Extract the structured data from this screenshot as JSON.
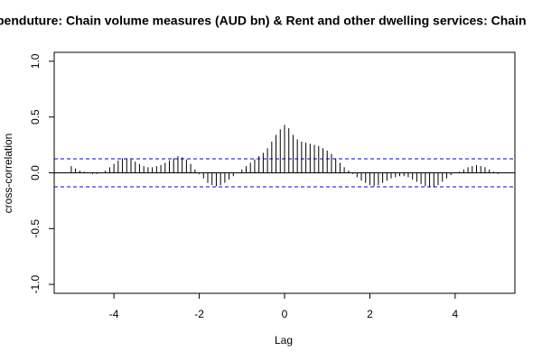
{
  "chart_data": {
    "type": "ccf",
    "title": "penduture: Chain volume measures (AUD bn) & Rent and other dwelling services: Chain",
    "x_label": "Lag",
    "y_label": "cross-correlation",
    "xlim": [
      -5.4,
      5.4
    ],
    "ylim": [
      -1.08,
      1.08
    ],
    "xticks": [
      -4,
      -2,
      0,
      2,
      4
    ],
    "yticks": [
      {
        "value": -1,
        "label": "-1.0"
      },
      {
        "value": -0.5,
        "label": "-0.5"
      },
      {
        "value": 0,
        "label": "0.0"
      },
      {
        "value": 0.5,
        "label": "0.5"
      },
      {
        "value": 1,
        "label": "1.0"
      }
    ],
    "color": "#000000",
    "confidence_bounds": [
      0.125,
      -0.125
    ],
    "confidence_color": "#0000ff",
    "x": [
      -5.0,
      -4.9,
      -4.8,
      -4.7,
      -4.6,
      -4.5,
      -4.4,
      -4.3,
      -4.2,
      -4.1,
      -4.0,
      -3.9,
      -3.8,
      -3.7,
      -3.6,
      -3.5,
      -3.4,
      -3.3,
      -3.2,
      -3.1,
      -3.0,
      -2.9,
      -2.8,
      -2.7,
      -2.6,
      -2.5,
      -2.4,
      -2.3,
      -2.2,
      -2.1,
      -2.0,
      -1.9,
      -1.8,
      -1.7,
      -1.6,
      -1.5,
      -1.4,
      -1.3,
      -1.2,
      -1.1,
      -1.0,
      -0.9,
      -0.8,
      -0.7,
      -0.6,
      -0.5,
      -0.4,
      -0.3,
      -0.2,
      -0.1,
      0.0,
      0.1,
      0.2,
      0.3,
      0.4,
      0.5,
      0.6,
      0.7,
      0.8,
      0.9,
      1.0,
      1.1,
      1.2,
      1.3,
      1.4,
      1.5,
      1.6,
      1.7,
      1.8,
      1.9,
      2.0,
      2.1,
      2.2,
      2.3,
      2.4,
      2.5,
      2.6,
      2.7,
      2.8,
      2.9,
      3.0,
      3.1,
      3.2,
      3.3,
      3.4,
      3.5,
      3.6,
      3.7,
      3.8,
      3.9,
      4.0,
      4.1,
      4.2,
      4.3,
      4.4,
      4.5,
      4.6,
      4.7,
      4.8,
      4.9,
      5.0
    ],
    "values": [
      0.06,
      0.04,
      0.02,
      0.01,
      0.0,
      -0.01,
      -0.01,
      0.0,
      0.02,
      0.05,
      0.08,
      0.11,
      0.13,
      0.13,
      0.12,
      0.1,
      0.08,
      0.06,
      0.05,
      0.05,
      0.06,
      0.07,
      0.09,
      0.11,
      0.13,
      0.15,
      0.14,
      0.12,
      0.08,
      0.03,
      -0.01,
      -0.05,
      -0.09,
      -0.11,
      -0.12,
      -0.11,
      -0.09,
      -0.06,
      -0.03,
      0.0,
      0.03,
      0.06,
      0.09,
      0.12,
      0.15,
      0.18,
      0.22,
      0.28,
      0.34,
      0.39,
      0.43,
      0.4,
      0.34,
      0.3,
      0.28,
      0.27,
      0.26,
      0.25,
      0.24,
      0.22,
      0.2,
      0.17,
      0.13,
      0.09,
      0.05,
      0.02,
      -0.01,
      -0.04,
      -0.07,
      -0.09,
      -0.11,
      -0.12,
      -0.11,
      -0.09,
      -0.07,
      -0.05,
      -0.04,
      -0.03,
      -0.03,
      -0.04,
      -0.06,
      -0.08,
      -0.1,
      -0.12,
      -0.13,
      -0.13,
      -0.11,
      -0.08,
      -0.05,
      -0.02,
      0.0,
      0.01,
      0.03,
      0.05,
      0.06,
      0.07,
      0.06,
      0.05,
      0.03,
      0.01,
      -0.01
    ]
  }
}
